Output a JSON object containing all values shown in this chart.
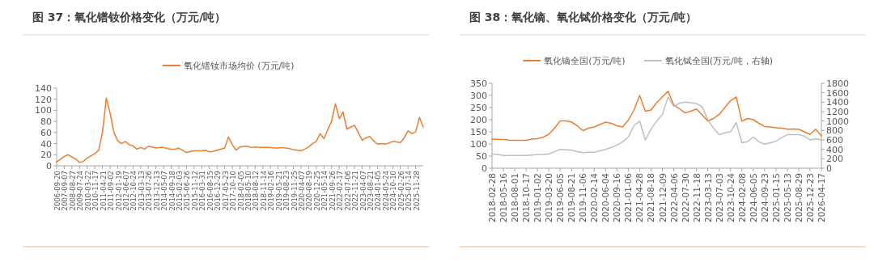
{
  "chart_data": [
    {
      "type": "line",
      "title": "图 37：氧化镨钕价格变化（万元/吨）",
      "legend": "top",
      "categories": [
        "2006-09-20",
        null,
        "2007-09-07",
        null,
        "2008-08-27",
        null,
        "2009-07-24",
        null,
        "2010-03-22",
        null,
        "2010-11-17",
        null,
        "2011-04-21",
        null,
        "2011-09-02",
        null,
        "2012-01-19",
        null,
        "2012-06-07",
        null,
        "2012-10-24",
        null,
        "2013-03-13",
        null,
        "2013-07-26",
        null,
        "2013-12-13",
        null,
        "2014-05-07",
        null,
        "2014-09-18",
        null,
        "2015-02-03",
        null,
        "2015-06-26",
        null,
        "2015-11-12",
        null,
        "2016-03-31",
        null,
        "2016-08-15",
        null,
        "2016-12-29",
        null,
        "2017-05-23",
        null,
        "2017-10-10",
        null,
        "2018-02-05",
        null,
        "2018-05-10",
        null,
        "2018-08-12",
        null,
        "2018-11-14",
        null,
        "2019-02-16",
        null,
        "2019-05-21",
        null,
        "2019-08-23",
        null,
        "2019-11-25",
        null,
        "2020-04-07",
        null,
        "2020-08-19",
        null,
        "2020-12-25",
        null,
        "2021-05-14",
        null,
        "2021-09-26",
        null,
        "2022-02-17",
        null,
        "2022-07-06",
        null,
        "2022-11-21",
        null,
        "2023-04-07",
        null,
        "2023-08-21",
        null,
        "2024-01-05",
        null,
        "2024-05-24",
        null,
        "2024-10-10",
        null,
        "2025-02-26",
        null,
        "2025-07-14",
        null,
        "2025-11-28",
        null,
        null
      ],
      "series": [
        {
          "name": "氧化镨钕市场均价 (万元/吨)",
          "color": "#ed7d31",
          "values": [
            7,
            12,
            17,
            20,
            16,
            12,
            6,
            8,
            14,
            18,
            22,
            28,
            60,
            122,
            95,
            60,
            45,
            40,
            44,
            38,
            36,
            30,
            33,
            30,
            35,
            34,
            32,
            33,
            33,
            31,
            30,
            30,
            32,
            28,
            24,
            26,
            27,
            27,
            27,
            28,
            25,
            26,
            28,
            30,
            32,
            52,
            38,
            28,
            34,
            35,
            35,
            33,
            34,
            33,
            33,
            33,
            33,
            32,
            32,
            33,
            32,
            31,
            29,
            28,
            27,
            30,
            34,
            40,
            44,
            58,
            49,
            65,
            80,
            112,
            85,
            97,
            66,
            70,
            73,
            60,
            46,
            50,
            53,
            45,
            39,
            40,
            39,
            41,
            44,
            43,
            42,
            50,
            63,
            58,
            61,
            87,
            70
          ]
        }
      ],
      "ylim": [
        0,
        140
      ],
      "yticks": [
        0,
        20,
        40,
        60,
        80,
        100,
        120,
        140
      ]
    },
    {
      "type": "line",
      "title": "图 38：氧化镝、氧化铽价格变化（万元/吨）",
      "legend": "top",
      "categories": [
        "2018-02-28",
        null,
        "2018-05-16",
        null,
        "2018-08-01",
        null,
        "2018-10-17",
        null,
        "2019-01-02",
        null,
        "2019-03-20",
        null,
        "2019-06-05",
        null,
        "2019-08-21",
        null,
        "2019-11-06",
        null,
        "2020-02-14",
        null,
        "2020-06-04",
        null,
        "2020-09-16",
        null,
        "2021-01-06",
        null,
        "2021-04-28",
        null,
        "2021-08-18",
        null,
        "2021-12-09",
        null,
        "2022-04-06",
        null,
        "2022-07-30",
        null,
        "2022-11-18",
        null,
        "2023-03-13",
        null,
        "2023-07-03",
        null,
        "2023-10-24",
        null,
        "2024-02-08",
        null,
        "2024-06-05",
        null,
        "2024-09-23",
        null,
        "2025-01-15",
        null,
        "2025-05-13",
        null,
        "2025-08-29",
        null,
        "2025-12-23",
        null,
        "2026-04-17"
      ],
      "series": [
        {
          "name": "氧化镝全国(万元/吨)",
          "color": "#ed7d31",
          "values": [
            120,
            119,
            118,
            116,
            115,
            115,
            115,
            120,
            122,
            128,
            140,
            165,
            195,
            195,
            190,
            175,
            155,
            165,
            170,
            180,
            190,
            185,
            175,
            170,
            198,
            240,
            300,
            235,
            240,
            270,
            294,
            317,
            261,
            245,
            228,
            235,
            244,
            220,
            194,
            205,
            222,
            250,
            278,
            294,
            194,
            205,
            200,
            185,
            172,
            170,
            167,
            165,
            161,
            162,
            161,
            150,
            139,
            161,
            133
          ]
        },
        {
          "name": "氧化铽全国(万元/吨，右轴)",
          "color": "#bfbfbf",
          "axis": "y2",
          "values": [
            300,
            290,
            270,
            270,
            270,
            270,
            270,
            280,
            290,
            290,
            300,
            350,
            400,
            390,
            380,
            350,
            330,
            340,
            340,
            370,
            400,
            440,
            490,
            560,
            660,
            900,
            1000,
            600,
            830,
            1000,
            1140,
            1510,
            1310,
            1380,
            1400,
            1390,
            1370,
            1300,
            1030,
            850,
            710,
            750,
            770,
            970,
            540,
            560,
            660,
            560,
            510,
            540,
            570,
            650,
            710,
            710,
            710,
            680,
            600,
            620,
            600
          ]
        }
      ],
      "ylim": [
        0,
        350
      ],
      "yticks": [
        0,
        50,
        100,
        150,
        200,
        250,
        300,
        350
      ],
      "y2lim": [
        0,
        1800
      ],
      "y2ticks": [
        0,
        200,
        400,
        600,
        800,
        1000,
        1200,
        1400,
        1600,
        1800
      ]
    }
  ]
}
